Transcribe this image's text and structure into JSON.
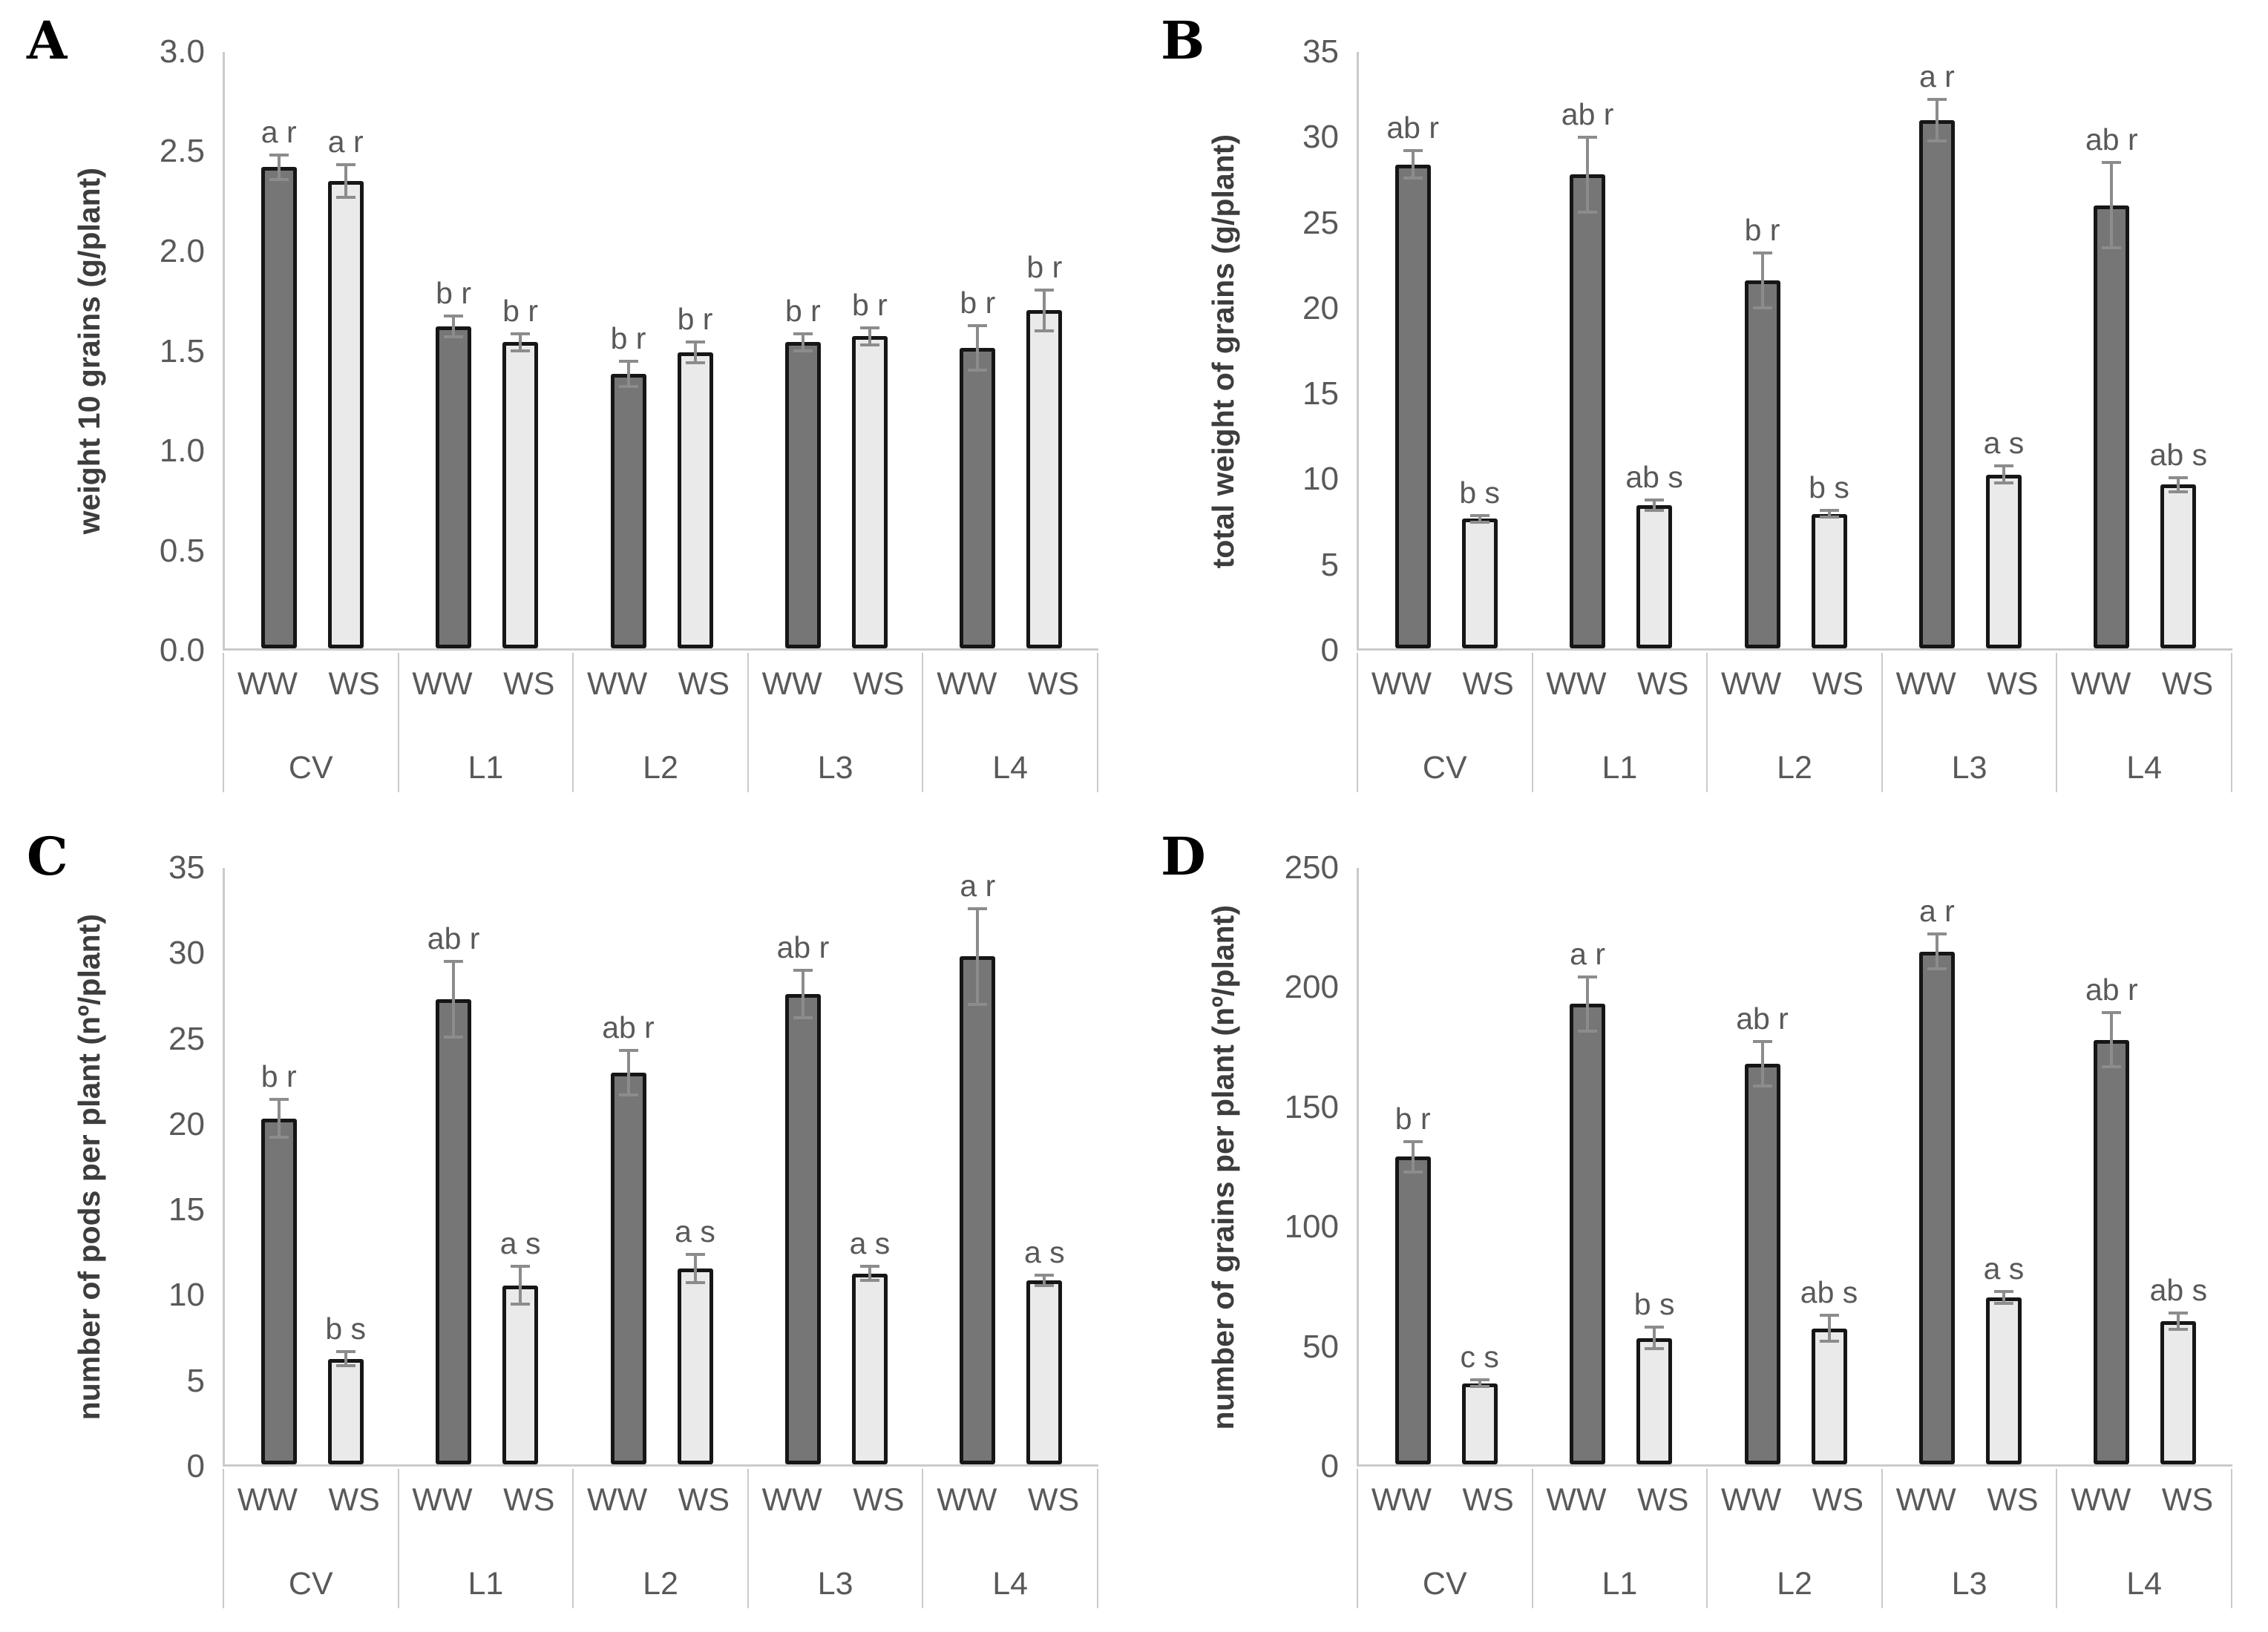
{
  "figure": {
    "background": "#ffffff",
    "colors": {
      "ww_bar_fill": "#767676",
      "ws_bar_fill": "#eaeaea",
      "bar_border": "#161616",
      "axis_line": "#cbcbcb",
      "tick_text": "#595959",
      "sig_text": "#595959",
      "error_bar": "#8c8c8c",
      "panel_letter": "#000000"
    },
    "x_axis": {
      "conditions": [
        "WW",
        "WS"
      ],
      "groups": [
        "CV",
        "L1",
        "L2",
        "L3",
        "L4"
      ]
    }
  },
  "chart_data": [
    {
      "panel": "A",
      "type": "bar",
      "title": "",
      "xlabel": "",
      "ylabel": "weight 10 grains (g/plant)",
      "ylim": [
        0,
        3.0
      ],
      "ytick_step": 0.5,
      "yticks": [
        "3.0",
        "2.5",
        "2.0",
        "1.5",
        "1.0",
        "0.5",
        "0.0"
      ],
      "grid": false,
      "legend": "none",
      "groups": [
        "CV",
        "L1",
        "L2",
        "L3",
        "L4"
      ],
      "series": [
        {
          "name": "WW",
          "values": [
            2.42,
            1.62,
            1.38,
            1.54,
            1.51
          ],
          "errors": [
            0.07,
            0.06,
            0.07,
            0.05,
            0.12
          ],
          "sig_labels": [
            "a r",
            "b r",
            "b r",
            "b r",
            "b r"
          ]
        },
        {
          "name": "WS",
          "values": [
            2.35,
            1.54,
            1.49,
            1.57,
            1.7
          ],
          "errors": [
            0.09,
            0.05,
            0.06,
            0.05,
            0.11
          ],
          "sig_labels": [
            "a r",
            "b r",
            "b r",
            "b r",
            "b r"
          ]
        }
      ]
    },
    {
      "panel": "B",
      "type": "bar",
      "title": "",
      "xlabel": "",
      "ylabel": "total weight of grains (g/plant)",
      "ylim": [
        0,
        35
      ],
      "ytick_step": 5,
      "yticks": [
        "35",
        "30",
        "25",
        "20",
        "15",
        "10",
        "5",
        "0"
      ],
      "grid": false,
      "legend": "none",
      "groups": [
        "CV",
        "L1",
        "L2",
        "L3",
        "L4"
      ],
      "series": [
        {
          "name": "WW",
          "values": [
            28.4,
            27.8,
            21.6,
            31.0,
            26.0
          ],
          "errors": [
            0.9,
            2.3,
            1.7,
            1.3,
            2.6
          ],
          "sig_labels": [
            "ab r",
            "ab r",
            "b r",
            "a r",
            "ab r"
          ]
        },
        {
          "name": "WS",
          "values": [
            7.6,
            8.4,
            7.9,
            10.2,
            9.6
          ],
          "errors": [
            0.3,
            0.4,
            0.3,
            0.6,
            0.5
          ],
          "sig_labels": [
            "b s",
            "ab s",
            "b s",
            "a s",
            "ab s"
          ]
        }
      ]
    },
    {
      "panel": "C",
      "type": "bar",
      "title": "",
      "xlabel": "",
      "ylabel": "number of pods per plant (nº/plant)",
      "ylim": [
        0,
        35
      ],
      "ytick_step": 5,
      "yticks": [
        "35",
        "30",
        "25",
        "20",
        "15",
        "10",
        "5",
        "0"
      ],
      "grid": false,
      "legend": "none",
      "groups": [
        "CV",
        "L1",
        "L2",
        "L3",
        "L4"
      ],
      "series": [
        {
          "name": "WW",
          "values": [
            20.3,
            27.3,
            23.0,
            27.6,
            29.8
          ],
          "errors": [
            1.2,
            2.3,
            1.4,
            1.5,
            2.9
          ],
          "sig_labels": [
            "b r",
            "ab r",
            "ab r",
            "ab r",
            "a r"
          ]
        },
        {
          "name": "WS",
          "values": [
            6.2,
            10.5,
            11.5,
            11.2,
            10.8
          ],
          "errors": [
            0.5,
            1.2,
            0.9,
            0.5,
            0.4
          ],
          "sig_labels": [
            "b s",
            "a s",
            "a s",
            "a s",
            "a s"
          ]
        }
      ]
    },
    {
      "panel": "D",
      "type": "bar",
      "title": "",
      "xlabel": "",
      "ylabel": "number of grains per plant (nº/plant)",
      "ylim": [
        0,
        250
      ],
      "ytick_step": 50,
      "yticks": [
        "250",
        "200",
        "150",
        "100",
        "50",
        "0"
      ],
      "grid": false,
      "legend": "none",
      "groups": [
        "CV",
        "L1",
        "L2",
        "L3",
        "L4"
      ],
      "series": [
        {
          "name": "WW",
          "values": [
            129,
            193,
            168,
            215,
            178
          ],
          "errors": [
            7,
            12,
            10,
            8,
            12
          ],
          "sig_labels": [
            "b r",
            "a r",
            "ab r",
            "a r",
            "ab r"
          ]
        },
        {
          "name": "WS",
          "values": [
            34,
            53,
            57,
            70,
            60
          ],
          "errors": [
            2,
            5,
            6,
            3,
            4
          ],
          "sig_labels": [
            "c s",
            "b s",
            "ab s",
            "a s",
            "ab s"
          ]
        }
      ]
    }
  ]
}
